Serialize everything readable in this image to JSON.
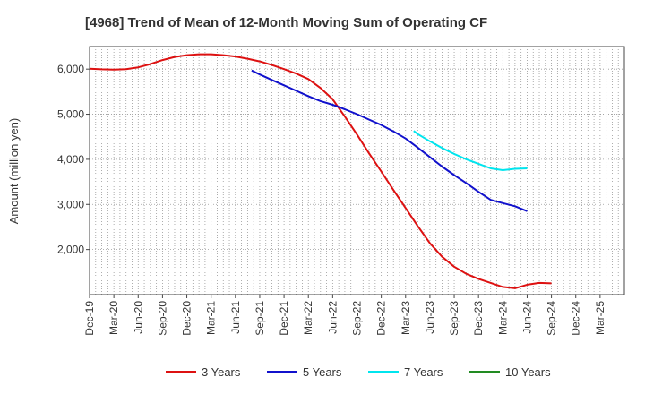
{
  "chart_data": {
    "type": "line",
    "title": "[4968]  Trend of Mean of 12-Month Moving Sum of Operating CF",
    "xlabel": "",
    "ylabel": "Amount (million yen)",
    "ylim": [
      1000,
      6500
    ],
    "yticks": [
      2000,
      3000,
      4000,
      5000,
      6000
    ],
    "ytick_labels": [
      "2,000",
      "3,000",
      "4,000",
      "5,000",
      "6,000"
    ],
    "grid": true,
    "legend_position": "bottom-center",
    "x_categories": [
      "Dec-19",
      "Mar-20",
      "Jun-20",
      "Sep-20",
      "Dec-20",
      "Mar-21",
      "Jun-21",
      "Sep-21",
      "Dec-21",
      "Mar-22",
      "Jun-22",
      "Sep-22",
      "Dec-22",
      "Mar-23",
      "Jun-23",
      "Sep-23",
      "Dec-23",
      "Mar-24",
      "Jun-24",
      "Sep-24",
      "Dec-24",
      "Mar-25"
    ],
    "series": [
      {
        "name": "3 Years",
        "color": "#dd1111",
        "points": [
          [
            0,
            6010
          ],
          [
            0.5,
            5995
          ],
          [
            1,
            5990
          ],
          [
            1.5,
            6000
          ],
          [
            2,
            6040
          ],
          [
            2.5,
            6110
          ],
          [
            3,
            6200
          ],
          [
            3.5,
            6270
          ],
          [
            4,
            6310
          ],
          [
            4.5,
            6330
          ],
          [
            5,
            6330
          ],
          [
            5.5,
            6310
          ],
          [
            6,
            6280
          ],
          [
            6.5,
            6230
          ],
          [
            7,
            6170
          ],
          [
            7.5,
            6090
          ],
          [
            8,
            6000
          ],
          [
            8.5,
            5900
          ],
          [
            9,
            5780
          ],
          [
            9.5,
            5580
          ],
          [
            10,
            5330
          ],
          [
            10.5,
            4950
          ],
          [
            11,
            4550
          ],
          [
            11.5,
            4130
          ],
          [
            12,
            3730
          ],
          [
            12.5,
            3320
          ],
          [
            13,
            2920
          ],
          [
            13.5,
            2520
          ],
          [
            14,
            2140
          ],
          [
            14.5,
            1840
          ],
          [
            15,
            1620
          ],
          [
            15.5,
            1460
          ],
          [
            16,
            1350
          ],
          [
            16.5,
            1260
          ],
          [
            17,
            1170
          ],
          [
            17.5,
            1140
          ],
          [
            18,
            1220
          ],
          [
            18.5,
            1260
          ],
          [
            19,
            1250
          ]
        ]
      },
      {
        "name": "5 Years",
        "color": "#1111cc",
        "points": [
          [
            6.666,
            5970
          ],
          [
            7,
            5880
          ],
          [
            7.5,
            5760
          ],
          [
            8,
            5640
          ],
          [
            8.5,
            5520
          ],
          [
            9,
            5400
          ],
          [
            9.5,
            5290
          ],
          [
            10,
            5210
          ],
          [
            10.5,
            5110
          ],
          [
            11,
            5000
          ],
          [
            11.5,
            4880
          ],
          [
            12,
            4760
          ],
          [
            12.5,
            4620
          ],
          [
            13,
            4460
          ],
          [
            13.5,
            4260
          ],
          [
            14,
            4050
          ],
          [
            14.5,
            3840
          ],
          [
            15,
            3650
          ],
          [
            15.5,
            3470
          ],
          [
            16,
            3280
          ],
          [
            16.5,
            3100
          ],
          [
            17,
            3030
          ],
          [
            17.5,
            2960
          ],
          [
            18,
            2850
          ]
        ]
      },
      {
        "name": "7 Years",
        "color": "#00e5ee",
        "points": [
          [
            13.333,
            4630
          ],
          [
            13.5,
            4560
          ],
          [
            14,
            4400
          ],
          [
            14.5,
            4250
          ],
          [
            15,
            4120
          ],
          [
            15.5,
            4000
          ],
          [
            16,
            3900
          ],
          [
            16.5,
            3800
          ],
          [
            17,
            3760
          ],
          [
            17.5,
            3790
          ],
          [
            18,
            3800
          ]
        ]
      },
      {
        "name": "10 Years",
        "color": "#228b22",
        "points": []
      }
    ]
  }
}
